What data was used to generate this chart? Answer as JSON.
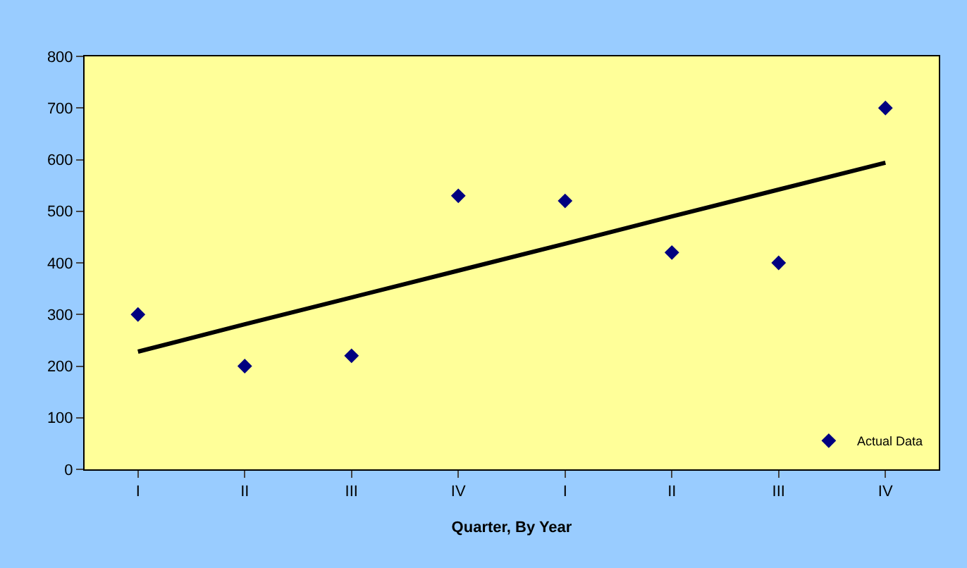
{
  "chart_data": {
    "type": "scatter",
    "xlabel": "Quarter, By Year",
    "categories": [
      "I",
      "II",
      "III",
      "IV",
      "I",
      "II",
      "III",
      "IV"
    ],
    "series": [
      {
        "name": "Actual Data",
        "color": "#000080",
        "marker": "diamond",
        "values": [
          300,
          200,
          220,
          530,
          520,
          420,
          400,
          700
        ]
      },
      {
        "color": "#000000",
        "type": "line",
        "marker": "none",
        "line_style": "solid",
        "values": [
          228,
          281,
          333,
          385,
          437,
          490,
          542,
          594
        ]
      }
    ],
    "ylim": [
      0,
      800
    ],
    "yticks": [
      0,
      100,
      200,
      300,
      400,
      500,
      600,
      700,
      800
    ],
    "grid": false,
    "legend": "bottom right"
  }
}
